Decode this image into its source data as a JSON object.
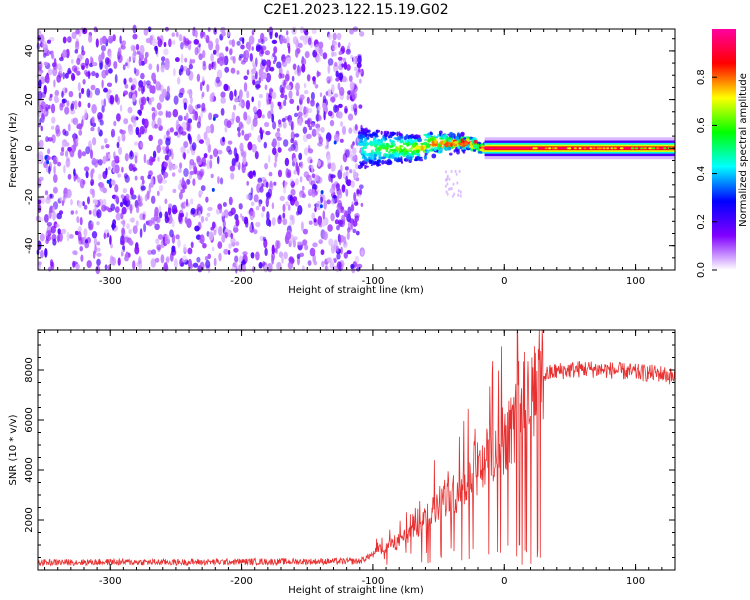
{
  "figure": {
    "title": "C2E1.2023.122.15.19.G02"
  },
  "colors": {
    "snr_line": "#e83030",
    "spectro_scatter": "#7a1cff",
    "spectro_faint": "#d7b8ff"
  },
  "chart_data": [
    {
      "type": "heatmap",
      "title": "C2E1.2023.122.15.19.G02",
      "xlabel": "Height of straight line (km)",
      "ylabel": "Frequency (Hz)",
      "xlim": [
        -355,
        130
      ],
      "ylim": [
        -50,
        49
      ],
      "xticks": [
        -300,
        -200,
        -100,
        0,
        100
      ],
      "xtick_labels": [
        "-300",
        "-200",
        "-100",
        "0",
        "100"
      ],
      "yticks": [
        -40,
        -20,
        0,
        20,
        40
      ],
      "ytick_labels": [
        "-40",
        "-20",
        "0",
        "20",
        "40"
      ],
      "colorbar": {
        "label": "Normalized spectral amplitude",
        "range": [
          0,
          1
        ],
        "ticks": [
          0.0,
          0.2,
          0.4,
          0.6,
          0.8
        ],
        "tick_labels": [
          "0.0",
          "0.2",
          "0.4",
          "0.6",
          "0.8"
        ],
        "colormap": [
          "#ffffff",
          "#8000ff",
          "#0000ff",
          "#00ffff",
          "#00ff00",
          "#ffff00",
          "#ff0000",
          "#ff00a0"
        ]
      },
      "regions": [
        {
          "x": [
            -355,
            -110
          ],
          "description_value": "broadband noise across full frequency range",
          "amplitude": [
            0.05,
            0.3
          ]
        },
        {
          "x": [
            -110,
            -15
          ],
          "center_freq": 0,
          "spread_hz": [
            8,
            2
          ],
          "amplitude": [
            0.3,
            0.9
          ]
        },
        {
          "x": [
            -15,
            130
          ],
          "center_freq": 0,
          "spread_hz": 2,
          "amplitude": [
            0.85,
            1.0
          ]
        }
      ],
      "grid": false
    },
    {
      "type": "line",
      "xlabel": "Height of straight line (km)",
      "ylabel": "SNR (10 * v/v)",
      "xlim": [
        -355,
        130
      ],
      "ylim": [
        0,
        9600
      ],
      "xticks": [
        -300,
        -200,
        -100,
        0,
        100
      ],
      "xtick_labels": [
        "-300",
        "-200",
        "-100",
        "0",
        "100"
      ],
      "yticks": [
        2000,
        4000,
        6000,
        8000
      ],
      "ytick_labels": [
        "2000",
        "4000",
        "6000",
        "8000"
      ],
      "series": [
        {
          "x": [
            -355,
            -300,
            -250,
            -200,
            -150,
            -110,
            -90,
            -70,
            -50,
            -30,
            -20,
            -10,
            0,
            5,
            10,
            12,
            20,
            30,
            40,
            60,
            80,
            100,
            120,
            130
          ],
          "values": [
            300,
            320,
            310,
            330,
            340,
            350,
            900,
            1500,
            2600,
            3400,
            4100,
            4700,
            5200,
            5600,
            6000,
            6700,
            7200,
            7800,
            7950,
            8050,
            8000,
            7900,
            7850,
            7700
          ]
        }
      ],
      "grid": false
    }
  ]
}
